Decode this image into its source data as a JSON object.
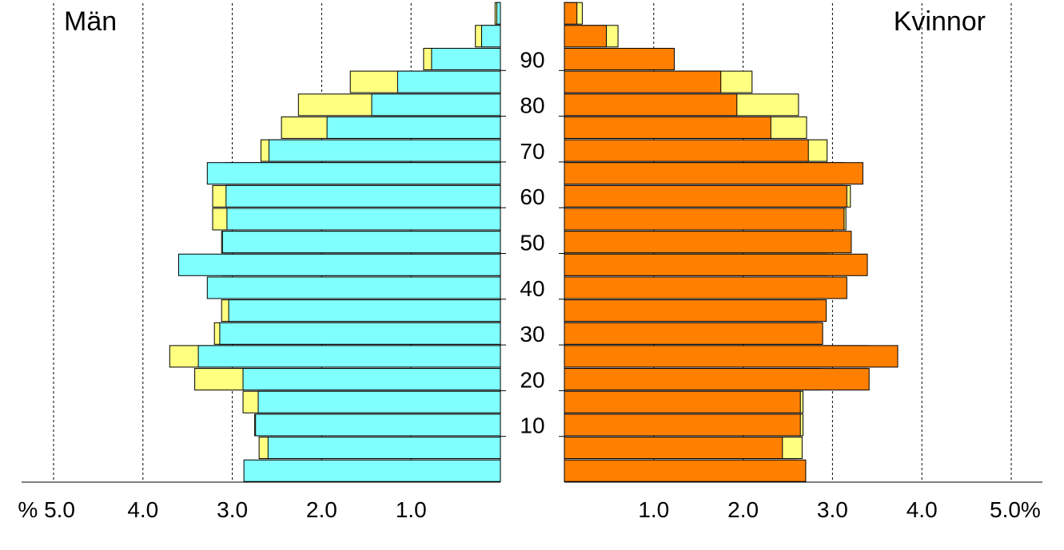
{
  "chart_data": {
    "type": "bar",
    "orientation": "horizontal-population-pyramid",
    "age_groups": [
      "0-4",
      "5-9",
      "10-14",
      "15-19",
      "20-24",
      "25-29",
      "30-34",
      "35-39",
      "40-44",
      "45-49",
      "50-54",
      "55-59",
      "60-64",
      "65-69",
      "70-74",
      "75-79",
      "80-84",
      "85-89",
      "90-94",
      "95-99",
      "100+"
    ],
    "age_tick_labels": [
      "10",
      "20",
      "30",
      "40",
      "50",
      "60",
      "70",
      "80",
      "90"
    ],
    "age_tick_values": [
      10,
      20,
      30,
      40,
      50,
      60,
      70,
      80,
      90
    ],
    "left_panel": {
      "title": "Män",
      "x_tick_labels": [
        "% 5.0",
        "4.0",
        "3.0",
        "2.0",
        "1.0"
      ],
      "x_tick_values": [
        5.0,
        4.0,
        3.0,
        2.0,
        1.0
      ],
      "xlim": [
        0,
        5.35
      ],
      "series": [
        {
          "role": "background",
          "color": "#ffff80",
          "values": [
            2.7,
            2.7,
            2.75,
            2.88,
            3.42,
            3.7,
            3.2,
            3.12,
            3.1,
            3.12,
            3.12,
            3.22,
            3.22,
            3.08,
            2.68,
            2.45,
            2.26,
            1.68,
            0.86,
            0.28,
            0.06
          ]
        },
        {
          "role": "foreground",
          "color": "#80ffff",
          "values": [
            2.87,
            2.6,
            2.74,
            2.71,
            2.88,
            3.38,
            3.14,
            3.04,
            3.28,
            3.6,
            3.11,
            3.06,
            3.07,
            3.28,
            2.59,
            1.94,
            1.44,
            1.15,
            0.77,
            0.21,
            0.04
          ]
        }
      ]
    },
    "right_panel": {
      "title": "Kvinnor",
      "x_tick_labels": [
        "1.0",
        "2.0",
        "3.0",
        "4.0",
        "5.0%"
      ],
      "x_tick_values": [
        1.0,
        2.0,
        3.0,
        4.0,
        5.0
      ],
      "xlim": [
        0,
        5.35
      ],
      "series": [
        {
          "role": "background",
          "color": "#ffff80",
          "values": [
            2.6,
            2.66,
            2.67,
            2.67,
            2.88,
            3.4,
            2.88,
            2.82,
            2.9,
            2.94,
            3.0,
            3.15,
            3.2,
            3.12,
            2.94,
            2.71,
            2.62,
            2.1,
            1.22,
            0.6,
            0.2
          ]
        },
        {
          "role": "foreground",
          "color": "#ff8000",
          "values": [
            2.7,
            2.44,
            2.64,
            2.64,
            3.41,
            3.73,
            2.89,
            2.93,
            3.16,
            3.39,
            3.21,
            3.13,
            3.16,
            3.34,
            2.73,
            2.31,
            1.93,
            1.75,
            1.23,
            0.47,
            0.14
          ]
        }
      ]
    }
  }
}
